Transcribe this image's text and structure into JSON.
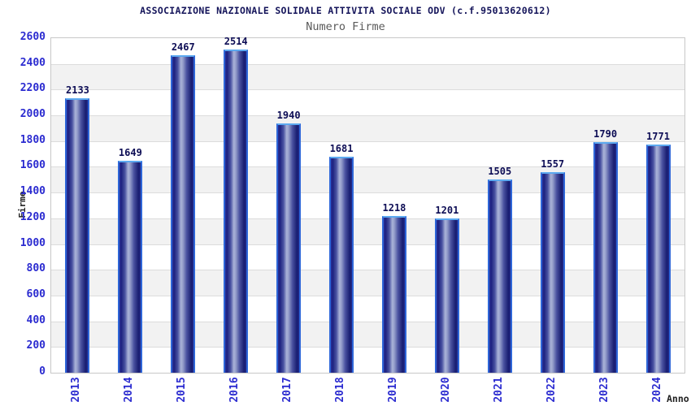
{
  "chart_data": {
    "type": "bar",
    "title": "ASSOCIAZIONE NAZIONALE SOLIDALE ATTIVITA SOCIALE ODV (c.f.95013620612)",
    "subtitle": "Numero Firme",
    "xlabel": "Anno",
    "ylabel": "Firme",
    "categories": [
      "2013",
      "2014",
      "2015",
      "2016",
      "2017",
      "2018",
      "2019",
      "2020",
      "2021",
      "2022",
      "2023",
      "2024"
    ],
    "values": [
      2133,
      1649,
      2467,
      2514,
      1940,
      1681,
      1218,
      1201,
      1505,
      1557,
      1790,
      1771
    ],
    "ylim": [
      0,
      2600
    ],
    "ytick_step": 200,
    "grid": true,
    "alternating_bands": true,
    "legend": "none"
  },
  "colors": {
    "title": "#14145a",
    "subtitle": "#5a5a5a",
    "tick_label": "#2b2bd0",
    "value_label": "#0d0d55",
    "axis_label": "#222222",
    "band": "#f2f2f2",
    "gridline": "#dcdcdc",
    "plot_border": "#c8c8c8",
    "bar_dark": "#1d2280",
    "bar_highlight": "#aab3d8",
    "bar_stroke": "#2e66d8",
    "bar_stroke_top": "#5ca9f0"
  }
}
